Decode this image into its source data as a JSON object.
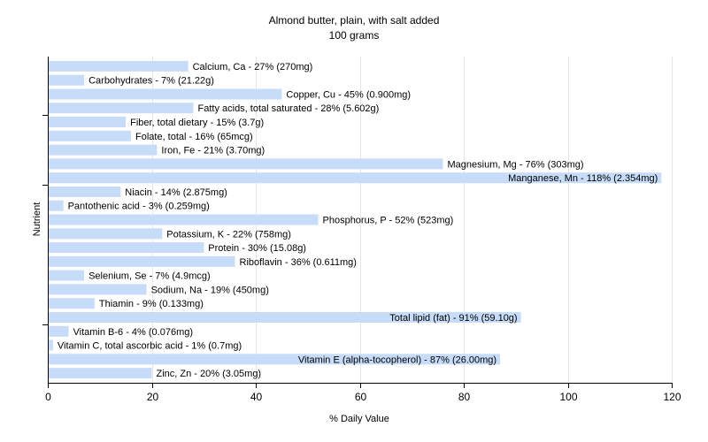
{
  "chart_data": {
    "type": "bar",
    "orientation": "horizontal",
    "title": "Almond butter, plain, with salt added",
    "subtitle": "100 grams",
    "xlabel": "% Daily Value",
    "ylabel": "Nutrient",
    "xlim": [
      0,
      120
    ],
    "xticks": [
      0,
      20,
      40,
      60,
      80,
      100,
      120
    ],
    "grid": true,
    "bar_color": "#c6dcf8",
    "categories": [
      "Calcium, Ca - 27% (270mg)",
      "Carbohydrates - 7% (21.22g)",
      "Copper, Cu - 45% (0.900mg)",
      "Fatty acids, total saturated - 28% (5.602g)",
      "Fiber, total dietary - 15% (3.7g)",
      "Folate, total - 16% (65mcg)",
      "Iron, Fe - 21% (3.70mg)",
      "Magnesium, Mg - 76% (303mg)",
      "Manganese, Mn - 118% (2.354mg)",
      "Niacin - 14% (2.875mg)",
      "Pantothenic acid - 3% (0.259mg)",
      "Phosphorus, P - 52% (523mg)",
      "Potassium, K - 22% (758mg)",
      "Protein - 30% (15.08g)",
      "Riboflavin - 36% (0.611mg)",
      "Selenium, Se - 7% (4.9mcg)",
      "Sodium, Na - 19% (450mg)",
      "Thiamin - 9% (0.133mg)",
      "Total lipid (fat) - 91% (59.10g)",
      "Vitamin B-6 - 4% (0.076mg)",
      "Vitamin C, total ascorbic acid - 1% (0.7mg)",
      "Vitamin E (alpha-tocopherol) - 87% (26.00mg)",
      "Zinc, Zn - 20% (3.05mg)"
    ],
    "values": [
      27,
      7,
      45,
      28,
      15,
      16,
      21,
      76,
      118,
      14,
      3,
      52,
      22,
      30,
      36,
      7,
      19,
      9,
      91,
      4,
      1,
      87,
      20
    ]
  }
}
